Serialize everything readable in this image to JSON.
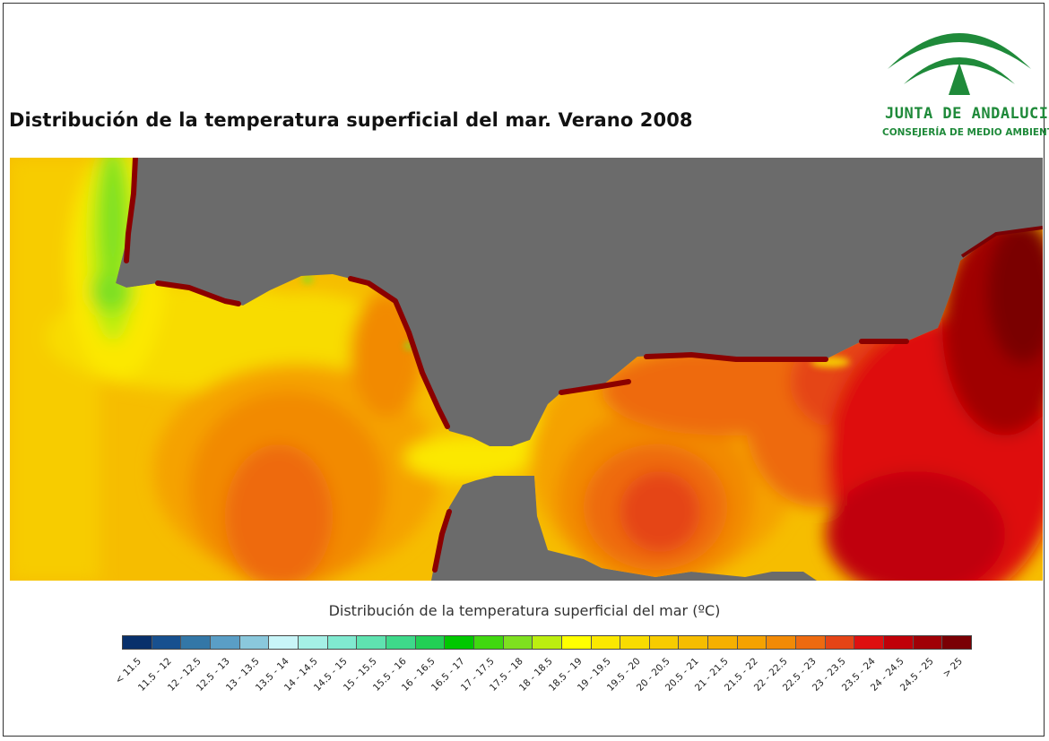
{
  "title": "Distribución de la temperatura superficial del mar. Verano 2008",
  "logo": {
    "name": "JUNTA DE ANDALUCIA",
    "subtitle": "CONSEJERÍA DE MEDIO AMBIENTE",
    "color": "#1f8a3a"
  },
  "map": {
    "land_color": "#6b6b6b",
    "coast_color": "#8b0000"
  },
  "legend": {
    "title": "Distribución de la temperatura superficial del mar (ºC)",
    "classes": [
      {
        "label": "< 11.5",
        "color": "#08306b"
      },
      {
        "label": "11.5 - 12",
        "color": "#17508f"
      },
      {
        "label": "12 - 12.5",
        "color": "#3377a7"
      },
      {
        "label": "12.5 - 13",
        "color": "#5a9ec6"
      },
      {
        "label": "13 - 13.5",
        "color": "#8ac8dc"
      },
      {
        "label": "13.5 - 14",
        "color": "#c8f5f8"
      },
      {
        "label": "14 - 14.5",
        "color": "#a5f0e6"
      },
      {
        "label": "14.5 - 15",
        "color": "#80ead0"
      },
      {
        "label": "15 - 15.5",
        "color": "#5fe3b0"
      },
      {
        "label": "15.5 - 16",
        "color": "#3ed98a"
      },
      {
        "label": "16 - 16.5",
        "color": "#22cf55"
      },
      {
        "label": "16.5 - 17",
        "color": "#00c800"
      },
      {
        "label": "17 - 17.5",
        "color": "#40d810"
      },
      {
        "label": "17.5 - 18",
        "color": "#7ee020"
      },
      {
        "label": "18 - 18.5",
        "color": "#bcee10"
      },
      {
        "label": "18.5 - 19",
        "color": "#ffff00"
      },
      {
        "label": "19 - 19.5",
        "color": "#fbe800"
      },
      {
        "label": "19.5 - 20",
        "color": "#f8dc00"
      },
      {
        "label": "20 - 20.5",
        "color": "#f7cc00"
      },
      {
        "label": "20.5 - 21",
        "color": "#f6bd00"
      },
      {
        "label": "21 - 21.5",
        "color": "#f6b000"
      },
      {
        "label": "21.5 - 22",
        "color": "#f5a200"
      },
      {
        "label": "22 - 22.5",
        "color": "#f28a06"
      },
      {
        "label": "22.5 - 23",
        "color": "#ee6a10"
      },
      {
        "label": "23 - 23.5",
        "color": "#e54416"
      },
      {
        "label": "23.5 - 24",
        "color": "#de1010"
      },
      {
        "label": "24 - 24.5",
        "color": "#c00008"
      },
      {
        "label": "24.5 - 25",
        "color": "#a00006"
      },
      {
        "label": "> 25",
        "color": "#7a0004"
      }
    ]
  }
}
